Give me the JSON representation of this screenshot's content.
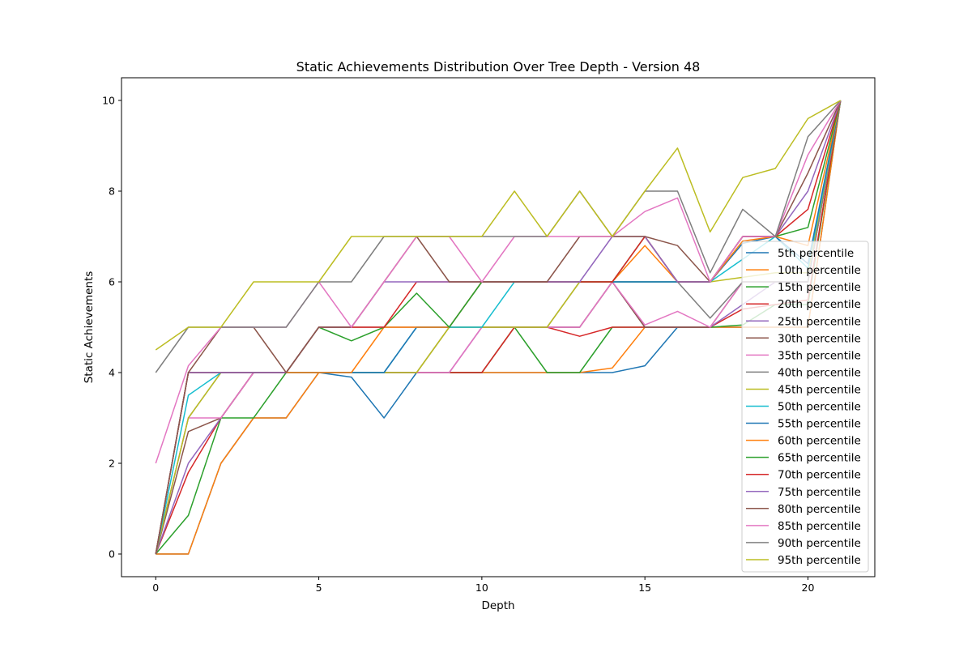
{
  "chart_data": {
    "type": "line",
    "title": "Static Achievements Distribution Over Tree Depth - Version 48",
    "xlabel": "Depth",
    "ylabel": "Static Achievements",
    "xlim": [
      -1.05,
      22.05
    ],
    "ylim": [
      -0.5,
      10.5
    ],
    "xticks": [
      0,
      5,
      10,
      15,
      20
    ],
    "yticks": [
      0,
      2,
      4,
      6,
      8,
      10
    ],
    "grid": false,
    "legend_position": "lower-right",
    "x": [
      0,
      1,
      2,
      3,
      4,
      5,
      6,
      7,
      8,
      9,
      10,
      11,
      12,
      13,
      14,
      15,
      16,
      17,
      18,
      19,
      20,
      21
    ],
    "series": [
      {
        "name": "5th percentile",
        "color": "#1f77b4",
        "values": [
          0,
          0,
          2,
          3,
          3,
          4,
          3.9,
          3,
          4,
          4,
          4,
          4,
          4,
          4,
          4,
          4.15,
          5,
          5,
          5,
          5,
          5,
          10
        ]
      },
      {
        "name": "10th percentile",
        "color": "#ff7f0e",
        "values": [
          0,
          0,
          2,
          3,
          3,
          4,
          4,
          4,
          4,
          4,
          4,
          4,
          4,
          4,
          4.1,
          5,
          5,
          5,
          5,
          5,
          5,
          10
        ]
      },
      {
        "name": "15th percentile",
        "color": "#2ca02c",
        "values": [
          0,
          0.85,
          3,
          3,
          4,
          4,
          4,
          4,
          4,
          4,
          4,
          5,
          4,
          4,
          5,
          5,
          5,
          5,
          5.05,
          5.5,
          5.5,
          10
        ]
      },
      {
        "name": "20th percentile",
        "color": "#d62728",
        "values": [
          0,
          1.8,
          3,
          4,
          4,
          4,
          4,
          4,
          4,
          4,
          4,
          5,
          5,
          4.8,
          5,
          5,
          5,
          5,
          5.4,
          5.5,
          5.6,
          10
        ]
      },
      {
        "name": "25th percentile",
        "color": "#9467bd",
        "values": [
          0,
          2,
          3,
          4,
          4,
          4,
          4,
          4,
          4,
          4,
          5,
          5,
          5,
          5,
          6,
          5,
          5,
          5,
          5.5,
          6,
          6,
          10
        ]
      },
      {
        "name": "30th percentile",
        "color": "#8c564b",
        "values": [
          0,
          2.7,
          3,
          4,
          4,
          5,
          5,
          5,
          5,
          5,
          5,
          5,
          5,
          5,
          6,
          5,
          5,
          5,
          6,
          6,
          6,
          10
        ]
      },
      {
        "name": "35th percentile",
        "color": "#e377c2",
        "values": [
          0,
          3,
          3,
          4,
          4,
          4,
          4,
          4,
          4,
          4,
          5,
          5,
          5,
          5,
          6,
          5.05,
          5.35,
          5,
          6,
          6,
          6,
          10
        ]
      },
      {
        "name": "40th percentile",
        "color": "#7f7f7f",
        "values": [
          0,
          3,
          4,
          4,
          4,
          4,
          4,
          4,
          4,
          5,
          5,
          5,
          5,
          6,
          6,
          6,
          6,
          5.2,
          6,
          6,
          6,
          10
        ]
      },
      {
        "name": "45th percentile",
        "color": "#bcbd22",
        "values": [
          0,
          3,
          4,
          4,
          4,
          4,
          4,
          4,
          4,
          5,
          5,
          5,
          5,
          6,
          6,
          6,
          6,
          6,
          6.1,
          6.2,
          6.2,
          10
        ]
      },
      {
        "name": "50th percentile",
        "color": "#17becf",
        "values": [
          0,
          3.5,
          4,
          4,
          4,
          4,
          4,
          4,
          5,
          5,
          5,
          6,
          6,
          6,
          6,
          6,
          6,
          6,
          6.5,
          7,
          6.3,
          10
        ]
      },
      {
        "name": "55th percentile",
        "color": "#1f77b4",
        "values": [
          0,
          4,
          4,
          4,
          4,
          4,
          4,
          4,
          5,
          5,
          6,
          6,
          6,
          6,
          6,
          6,
          6,
          6,
          6.85,
          7,
          6.4,
          10
        ]
      },
      {
        "name": "60th percentile",
        "color": "#ff7f0e",
        "values": [
          0,
          4,
          4,
          4,
          4,
          4,
          4,
          5,
          5,
          5,
          6,
          6,
          6,
          6,
          6,
          6.8,
          6,
          6,
          6.9,
          7,
          6.8,
          10
        ]
      },
      {
        "name": "65th percentile",
        "color": "#2ca02c",
        "values": [
          0,
          4,
          4,
          4,
          4,
          5,
          4.7,
          5,
          5.75,
          5,
          6,
          6,
          6,
          6,
          6,
          7,
          6,
          6,
          7,
          7,
          7.2,
          10
        ]
      },
      {
        "name": "70th percentile",
        "color": "#d62728",
        "values": [
          0,
          4,
          4,
          4,
          4,
          5,
          5,
          5,
          6,
          6,
          6,
          6,
          6,
          6,
          6,
          7,
          6,
          6,
          7,
          7,
          7.6,
          10
        ]
      },
      {
        "name": "75th percentile",
        "color": "#9467bd",
        "values": [
          0,
          4,
          4,
          4,
          4,
          5,
          5,
          6,
          6,
          6,
          6,
          6,
          6,
          6,
          7,
          7,
          6,
          6,
          7,
          7,
          8,
          10
        ]
      },
      {
        "name": "80th percentile",
        "color": "#8c564b",
        "values": [
          0,
          4,
          5,
          5,
          4,
          5,
          5,
          6,
          7,
          6,
          6,
          6,
          6,
          7,
          7,
          7,
          6.8,
          6,
          7,
          7,
          8.4,
          10
        ]
      },
      {
        "name": "85th percentile",
        "color": "#e377c2",
        "values": [
          2,
          4.15,
          5,
          5,
          5,
          6,
          5,
          6,
          7,
          7,
          6,
          7,
          7,
          7,
          7,
          7.55,
          7.85,
          6,
          7,
          7,
          8.8,
          10
        ]
      },
      {
        "name": "90th percentile",
        "color": "#7f7f7f",
        "values": [
          4,
          5,
          5,
          5,
          5,
          6,
          6,
          7,
          7,
          7,
          7,
          7,
          7,
          8,
          7,
          8,
          8,
          6.2,
          7.6,
          7,
          9.2,
          10
        ]
      },
      {
        "name": "95th percentile",
        "color": "#bcbd22",
        "values": [
          4.5,
          5,
          5,
          6,
          6,
          6,
          7,
          7,
          7,
          7,
          7,
          8,
          7,
          8,
          7,
          8,
          8.95,
          7.1,
          8.3,
          8.5,
          9.6,
          10
        ]
      }
    ]
  }
}
